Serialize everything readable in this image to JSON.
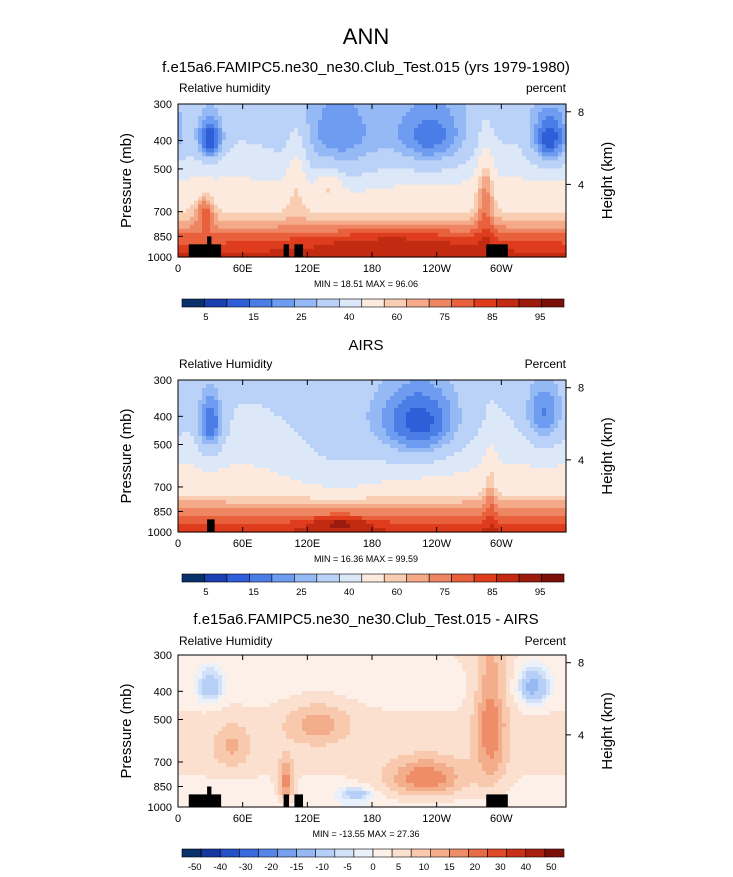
{
  "page": {
    "main_title": "ANN"
  },
  "colors": {
    "rh_scale": [
      "#08306b",
      "#1a3fb0",
      "#2f5fd8",
      "#4a7ee6",
      "#6e9cf0",
      "#94b9f5",
      "#bad2f8",
      "#dce7f8",
      "#fbeadd",
      "#f9cdb2",
      "#f4a988",
      "#ee8563",
      "#e9603d",
      "#de3c1c",
      "#c32a12",
      "#9c1b0c",
      "#7a1008"
    ],
    "diff_scale": [
      "#08306b",
      "#15379f",
      "#2450c8",
      "#3a69dc",
      "#5585e6",
      "#76a0ee",
      "#96b8f3",
      "#b6cff7",
      "#d2e1f8",
      "#eaf1fb",
      "#fdf0e8",
      "#fbe0cf",
      "#f8c9ad",
      "#f4ad8a",
      "#ef8d68",
      "#e86b47",
      "#df4a2a",
      "#c9301a",
      "#a71f0f",
      "#7a1008"
    ],
    "topography": "#000000"
  },
  "chart_data": [
    {
      "type": "heatmap",
      "title": "f.e15a6.FAMIPC5.ne30_ne30.Club_Test.015 (yrs 1979-1980)",
      "left_label": "Relative humidity",
      "right_label": "percent",
      "ylabel": "Pressure (mb)",
      "ylabel_right": "Height (km)",
      "x_ticks": [
        "0",
        "60E",
        "120E",
        "180",
        "120W",
        "60W"
      ],
      "y_ticks": [
        "300",
        "400",
        "500",
        "700",
        "850",
        "1000"
      ],
      "y_ticks_right": [
        "8",
        "4"
      ],
      "stats": "MIN =  18.51   MAX =  96.06",
      "colorbar_labels": [
        "5",
        "15",
        "25",
        "40",
        "60",
        "75",
        "85",
        "95"
      ],
      "colorbar_kind": "rh",
      "fields": {
        "base": [
          [
            300,
            34
          ],
          [
            400,
            40
          ],
          [
            500,
            48
          ],
          [
            700,
            60
          ],
          [
            850,
            76
          ],
          [
            1000,
            88
          ]
        ],
        "blobs": [
          {
            "lon": 30,
            "p": 400,
            "dlon": 12,
            "dp": 70,
            "amp": -30
          },
          {
            "lon": 150,
            "p": 420,
            "dlon": 45,
            "dp": 150,
            "amp": -18
          },
          {
            "lon": 235,
            "p": 400,
            "dlon": 35,
            "dp": 110,
            "amp": -22
          },
          {
            "lon": 345,
            "p": 400,
            "dlon": 18,
            "dp": 90,
            "amp": -28
          },
          {
            "lon": 110,
            "p": 480,
            "dlon": 10,
            "dp": 170,
            "amp": 14
          },
          {
            "lon": 285,
            "p": 600,
            "dlon": 8,
            "dp": 240,
            "amp": 18
          },
          {
            "lon": 25,
            "p": 700,
            "dlon": 8,
            "dp": 90,
            "amp": 18
          },
          {
            "lon": 140,
            "p": 560,
            "dlon": 12,
            "dp": 70,
            "amp": 14
          },
          {
            "lon": 200,
            "p": 880,
            "dlon": 90,
            "dp": 80,
            "amp": 8
          }
        ]
      },
      "topography": [
        [
          10,
          31,
          905
        ],
        [
          27,
          31,
          850
        ],
        [
          31,
          40,
          905
        ],
        [
          98,
          103,
          905
        ],
        [
          108,
          116,
          905
        ],
        [
          286,
          306,
          905
        ]
      ]
    },
    {
      "type": "heatmap",
      "title": "AIRS",
      "left_label": "Relative Humidity",
      "right_label": "Percent",
      "ylabel": "Pressure (mb)",
      "ylabel_right": "Height (km)",
      "x_ticks": [
        "0",
        "60E",
        "120E",
        "180",
        "120W",
        "60W"
      ],
      "y_ticks": [
        "300",
        "400",
        "500",
        "700",
        "850",
        "1000"
      ],
      "y_ticks_right": [
        "8",
        "4"
      ],
      "stats": "MIN =  16.36   MAX =  99.59",
      "colorbar_labels": [
        "5",
        "15",
        "25",
        "40",
        "60",
        "75",
        "85",
        "95"
      ],
      "colorbar_kind": "rh",
      "fields": {
        "base": [
          [
            300,
            38
          ],
          [
            400,
            42
          ],
          [
            500,
            47
          ],
          [
            700,
            55
          ],
          [
            850,
            72
          ],
          [
            1000,
            86
          ]
        ],
        "blobs": [
          {
            "lon": 30,
            "p": 430,
            "dlon": 13,
            "dp": 110,
            "amp": -28
          },
          {
            "lon": 150,
            "p": 520,
            "dlon": 50,
            "dp": 220,
            "amp": -10
          },
          {
            "lon": 225,
            "p": 430,
            "dlon": 40,
            "dp": 140,
            "amp": -30
          },
          {
            "lon": 340,
            "p": 400,
            "dlon": 20,
            "dp": 110,
            "amp": -22
          },
          {
            "lon": 150,
            "p": 930,
            "dlon": 30,
            "dp": 50,
            "amp": 12
          },
          {
            "lon": 290,
            "p": 700,
            "dlon": 6,
            "dp": 250,
            "amp": 10
          }
        ]
      },
      "topography": [
        [
          27,
          34,
          905
        ]
      ]
    },
    {
      "type": "heatmap",
      "title": "f.e15a6.FAMIPC5.ne30_ne30.Club_Test.015 - AIRS",
      "left_label": "Relative Humidity",
      "right_label": "Percent",
      "ylabel": "Pressure (mb)",
      "ylabel_right": "Height (km)",
      "x_ticks": [
        "0",
        "60E",
        "120E",
        "180",
        "120W",
        "60W"
      ],
      "y_ticks": [
        "300",
        "400",
        "500",
        "700",
        "850",
        "1000"
      ],
      "y_ticks_right": [
        "8",
        "4"
      ],
      "stats": "MIN = -13.55   MAX =  27.36",
      "colorbar_labels": [
        "-50",
        "-40",
        "-30",
        "-20",
        "-15",
        "-10",
        "-5",
        "0",
        "5",
        "10",
        "15",
        "20",
        "30",
        "40",
        "50"
      ],
      "colorbar_kind": "diff",
      "fields": {
        "base": [
          [
            300,
            5
          ],
          [
            400,
            3
          ],
          [
            500,
            6
          ],
          [
            700,
            6
          ],
          [
            850,
            4
          ],
          [
            1000,
            2
          ]
        ],
        "blobs": [
          {
            "lon": 130,
            "p": 520,
            "dlon": 30,
            "dp": 90,
            "amp": 12
          },
          {
            "lon": 230,
            "p": 800,
            "dlon": 35,
            "dp": 120,
            "amp": 20
          },
          {
            "lon": 290,
            "p": 520,
            "dlon": 15,
            "dp": 300,
            "amp": 18
          },
          {
            "lon": 100,
            "p": 820,
            "dlon": 7,
            "dp": 140,
            "amp": 18
          },
          {
            "lon": 30,
            "p": 380,
            "dlon": 12,
            "dp": 60,
            "amp": -8
          },
          {
            "lon": 330,
            "p": 380,
            "dlon": 14,
            "dp": 60,
            "amp": -10
          },
          {
            "lon": 165,
            "p": 900,
            "dlon": 15,
            "dp": 50,
            "amp": -8
          },
          {
            "lon": 50,
            "p": 620,
            "dlon": 18,
            "dp": 110,
            "amp": 10
          }
        ]
      },
      "topography": [
        [
          10,
          31,
          905
        ],
        [
          27,
          31,
          850
        ],
        [
          31,
          40,
          905
        ],
        [
          98,
          103,
          905
        ],
        [
          108,
          116,
          905
        ],
        [
          286,
          306,
          905
        ]
      ]
    }
  ]
}
